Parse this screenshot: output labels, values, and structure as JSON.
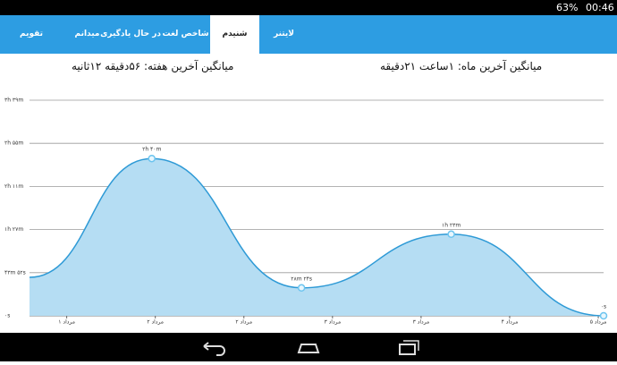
{
  "status_bar": {
    "battery": "63%",
    "time": "00:46"
  },
  "tabs": [
    "تقویم",
    "میدانم",
    "در حال یادگیری",
    "شاخص لغت",
    "شنیدم",
    "لایتنر"
  ],
  "selected_tab": 4,
  "summary": {
    "week": "میانگین آخرین هفته: ۵۶دقیقه  ۱۲ثانیه",
    "month": "میانگین آخرین ماه: ۱ساعت  ۲۱دقیقه"
  },
  "chart_data": {
    "type": "area",
    "x": [
      -0.42,
      0.96,
      2.65,
      4.34,
      6.06
    ],
    "values": [
      39.1,
      160,
      28.4,
      83,
      0
    ],
    "value_labels": [
      null,
      "۲h ۴۰m",
      "۲۸m ۲۴s",
      "۱h ۲۳m",
      "۰s"
    ],
    "color": "#2e9ad6",
    "fill": "#b5ddf3",
    "xlim": [
      -0.42,
      6.06
    ],
    "xticks": [
      {
        "value": 0,
        "label": "۱ مرداد"
      },
      {
        "value": 1,
        "label": "۲ مرداد"
      },
      {
        "value": 2,
        "label": "۲ مرداد"
      },
      {
        "value": 3,
        "label": "۳ مرداد"
      },
      {
        "value": 4,
        "label": "۳ مرداد"
      },
      {
        "value": 5,
        "label": "۴ مرداد"
      },
      {
        "value": 6,
        "label": "۵ مرداد"
      }
    ],
    "ylim": [
      0,
      219.333
    ],
    "yticks": [
      {
        "value": 0,
        "label": "۰s"
      },
      {
        "value": 43.867,
        "label": "۴۳m ۵۲s"
      },
      {
        "value": 87.733,
        "label": "۱h ۲۷m"
      },
      {
        "value": 131.6,
        "label": "۲h ۱۱m"
      },
      {
        "value": 175.467,
        "label": "۲h ۵۵m"
      },
      {
        "value": 219.333,
        "label": "۳h ۳۹m"
      }
    ],
    "grid": true
  }
}
